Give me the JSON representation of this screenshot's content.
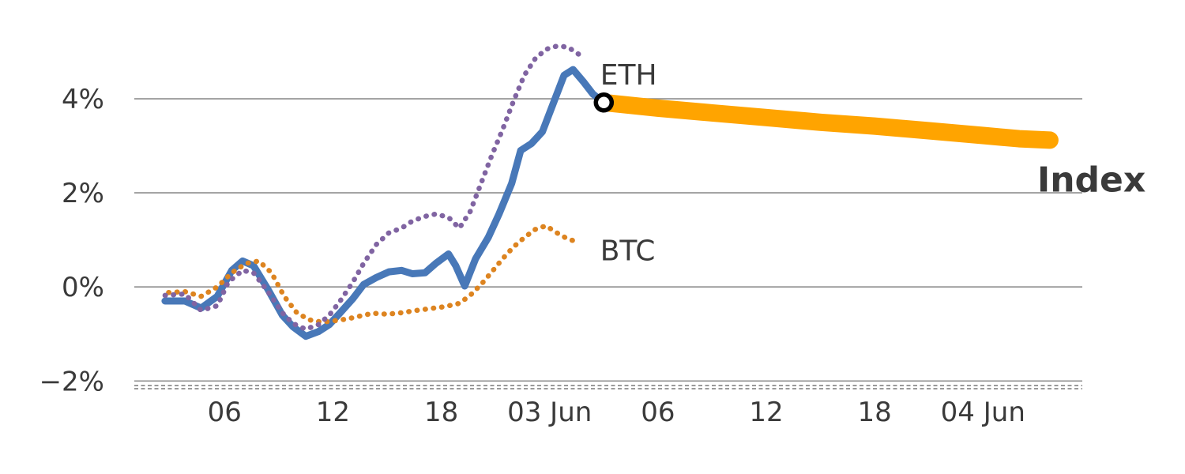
{
  "figure": {
    "background": "#ffffff",
    "description_labels": {
      "eth_label": "ETH",
      "btc_label": "BTC",
      "index_label": "Index"
    }
  },
  "chart_data": {
    "type": "line",
    "title": "",
    "xlabel": "",
    "ylabel": "",
    "x_unit": "hours-from-02-jun-00:00",
    "x_domain": [
      1,
      53.5
    ],
    "y_domain": [
      -2.13,
      5.68
    ],
    "grid": "horizontal",
    "grid_color": "#8c8c8c",
    "axis_dash_color": "#9a9a9a",
    "tick_label_color": "#3a3a3a",
    "y_ticks": [
      {
        "value": 4,
        "label": "4%"
      },
      {
        "value": 2,
        "label": "2%"
      },
      {
        "value": 0,
        "label": "0%"
      },
      {
        "value": -2,
        "label": "−2%"
      }
    ],
    "x_ticks": [
      {
        "value": 6,
        "label": "06"
      },
      {
        "value": 12,
        "label": "12"
      },
      {
        "value": 18,
        "label": "18"
      },
      {
        "value": 24,
        "label": "03 Jun"
      },
      {
        "value": 30,
        "label": "06"
      },
      {
        "value": 36,
        "label": "12"
      },
      {
        "value": 42,
        "label": "18"
      },
      {
        "value": 48,
        "label": "04 Jun"
      }
    ],
    "series": [
      {
        "name": "Index forecast",
        "color": "#ffa400",
        "style": "solid",
        "width": 22,
        "points": [
          [
            27.0,
            3.92
          ],
          [
            30,
            3.8
          ],
          [
            33,
            3.7
          ],
          [
            36,
            3.6
          ],
          [
            39,
            3.5
          ],
          [
            42,
            3.42
          ],
          [
            45,
            3.32
          ],
          [
            48,
            3.22
          ],
          [
            50,
            3.15
          ],
          [
            51.7,
            3.12
          ]
        ]
      },
      {
        "name": "Index",
        "color": "#4878b8",
        "style": "solid",
        "width": 9,
        "label": {
          "text": "Index",
          "x": 51.0,
          "y": 2.27,
          "size": 44,
          "weight": "bold"
        },
        "points": [
          [
            2.7,
            -0.3
          ],
          [
            3.8,
            -0.3
          ],
          [
            4.7,
            -0.45
          ],
          [
            5.6,
            -0.2
          ],
          [
            6.4,
            0.35
          ],
          [
            7.0,
            0.55
          ],
          [
            7.6,
            0.45
          ],
          [
            8.4,
            -0.05
          ],
          [
            9.2,
            -0.6
          ],
          [
            9.8,
            -0.85
          ],
          [
            10.5,
            -1.05
          ],
          [
            11.2,
            -0.95
          ],
          [
            11.8,
            -0.8
          ],
          [
            12.4,
            -0.55
          ],
          [
            13.1,
            -0.25
          ],
          [
            13.7,
            0.05
          ],
          [
            14.4,
            0.2
          ],
          [
            15.1,
            0.32
          ],
          [
            15.8,
            0.35
          ],
          [
            16.4,
            0.28
          ],
          [
            17.1,
            0.3
          ],
          [
            17.7,
            0.5
          ],
          [
            18.4,
            0.7
          ],
          [
            18.8,
            0.45
          ],
          [
            19.3,
            0.02
          ],
          [
            19.9,
            0.6
          ],
          [
            20.6,
            1.05
          ],
          [
            21.2,
            1.55
          ],
          [
            21.9,
            2.2
          ],
          [
            22.4,
            2.9
          ],
          [
            23.0,
            3.05
          ],
          [
            23.6,
            3.3
          ],
          [
            24.2,
            3.9
          ],
          [
            24.8,
            4.5
          ],
          [
            25.3,
            4.62
          ],
          [
            25.9,
            4.35
          ],
          [
            26.4,
            4.1
          ],
          [
            27.0,
            3.92
          ]
        ]
      },
      {
        "name": "BTC",
        "color": "#dd8420",
        "style": "dotted",
        "width": 6.5,
        "label": {
          "text": "BTC",
          "x": 26.8,
          "y": 0.76,
          "size": 36,
          "weight": "normal"
        },
        "points": [
          [
            2.9,
            -0.12
          ],
          [
            3.8,
            -0.1
          ],
          [
            4.7,
            -0.2
          ],
          [
            5.6,
            0.0
          ],
          [
            6.4,
            0.3
          ],
          [
            7.2,
            0.5
          ],
          [
            7.9,
            0.55
          ],
          [
            8.6,
            0.3
          ],
          [
            9.3,
            -0.2
          ],
          [
            10.0,
            -0.55
          ],
          [
            10.7,
            -0.7
          ],
          [
            11.4,
            -0.75
          ],
          [
            12.1,
            -0.72
          ],
          [
            12.8,
            -0.68
          ],
          [
            13.5,
            -0.62
          ],
          [
            14.2,
            -0.56
          ],
          [
            15.0,
            -0.58
          ],
          [
            15.8,
            -0.55
          ],
          [
            16.6,
            -0.5
          ],
          [
            17.4,
            -0.46
          ],
          [
            18.2,
            -0.42
          ],
          [
            19.0,
            -0.35
          ],
          [
            19.6,
            -0.18
          ],
          [
            20.2,
            0.05
          ],
          [
            20.8,
            0.32
          ],
          [
            21.4,
            0.6
          ],
          [
            22.0,
            0.85
          ],
          [
            22.6,
            1.05
          ],
          [
            23.2,
            1.22
          ],
          [
            23.8,
            1.3
          ],
          [
            24.4,
            1.15
          ],
          [
            25.0,
            1.02
          ],
          [
            25.6,
            0.95
          ]
        ]
      },
      {
        "name": "ETH",
        "color": "#8064a2",
        "style": "dotted",
        "width": 6.5,
        "label": {
          "text": "ETH",
          "x": 26.8,
          "y": 4.5,
          "size": 36,
          "weight": "normal"
        },
        "points": [
          [
            2.7,
            -0.18
          ],
          [
            3.8,
            -0.15
          ],
          [
            4.7,
            -0.5
          ],
          [
            5.6,
            -0.4
          ],
          [
            6.2,
            0.1
          ],
          [
            7.0,
            0.35
          ],
          [
            7.6,
            0.3
          ],
          [
            8.4,
            -0.1
          ],
          [
            9.2,
            -0.55
          ],
          [
            9.8,
            -0.78
          ],
          [
            10.5,
            -0.9
          ],
          [
            11.2,
            -0.8
          ],
          [
            11.8,
            -0.6
          ],
          [
            12.4,
            -0.3
          ],
          [
            13.1,
            0.1
          ],
          [
            13.7,
            0.5
          ],
          [
            14.4,
            0.9
          ],
          [
            15.1,
            1.15
          ],
          [
            15.8,
            1.25
          ],
          [
            16.4,
            1.4
          ],
          [
            17.1,
            1.5
          ],
          [
            17.7,
            1.55
          ],
          [
            18.4,
            1.48
          ],
          [
            19.0,
            1.25
          ],
          [
            19.6,
            1.6
          ],
          [
            20.2,
            2.2
          ],
          [
            20.8,
            2.8
          ],
          [
            21.4,
            3.35
          ],
          [
            22.0,
            3.95
          ],
          [
            22.6,
            4.5
          ],
          [
            23.2,
            4.85
          ],
          [
            23.8,
            5.05
          ],
          [
            24.4,
            5.12
          ],
          [
            25.0,
            5.1
          ],
          [
            25.6,
            4.95
          ]
        ]
      }
    ],
    "marker": {
      "name": "last-observation-marker",
      "x": 27.0,
      "y": 3.92,
      "radius": 10,
      "fill": "#ffffff",
      "stroke": "#000000",
      "stroke_width": 5.5
    }
  }
}
